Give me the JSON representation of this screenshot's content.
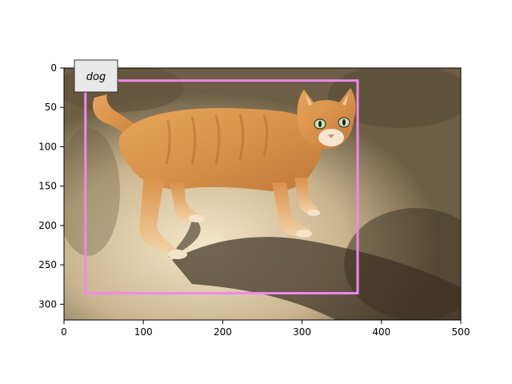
{
  "image": {
    "subject": "orange tabby cat",
    "x_extent": [
      0,
      500
    ],
    "y_extent": [
      0,
      320
    ]
  },
  "axes": {
    "x_ticks": [
      "0",
      "100",
      "200",
      "300",
      "400",
      "500"
    ],
    "y_ticks": [
      "0",
      "50",
      "100",
      "150",
      "200",
      "250",
      "300"
    ]
  },
  "detection": {
    "label": "dog",
    "box": {
      "x_min": 27,
      "y_min": 16,
      "x_max": 370,
      "y_max": 286
    },
    "color": "#ee88ee"
  }
}
